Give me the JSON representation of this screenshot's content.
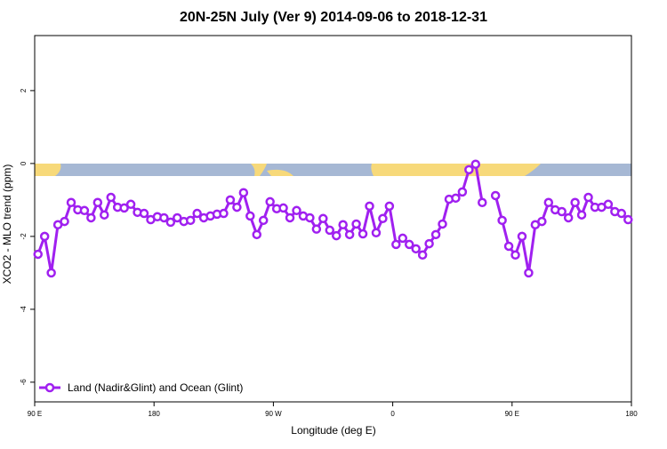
{
  "chart_data": {
    "type": "line",
    "title": "20N-25N July (Ver 9)   2014-09-06 to 2018-12-31",
    "x_label": "Longitude (deg E)",
    "y_label": "XCO2 - MLO trend (ppm)",
    "xlim": [
      90,
      540
    ],
    "ylim": [
      -6.54,
      3.51
    ],
    "xticks": [
      {
        "value": 90,
        "label": "90 E"
      },
      180,
      {
        "value": 270,
        "label": "90 W"
      },
      {
        "value": 360,
        "label": "0"
      },
      {
        "value": 450,
        "label": "90 E"
      },
      {
        "value": 540,
        "label": "180"
      }
    ],
    "yticks": [
      2,
      0,
      -2,
      -4,
      -6
    ],
    "legend_position": "bottom-left",
    "x": [
      92.5,
      97.5,
      102.5,
      107.5,
      112.5,
      117.5,
      122.5,
      127.5,
      132.5,
      137.5,
      142.5,
      147.5,
      152.5,
      157.5,
      162.5,
      167.5,
      172.5,
      177.5,
      182.5,
      187.5,
      192.5,
      197.5,
      202.5,
      207.5,
      212.5,
      217.5,
      222.5,
      227.5,
      232.5,
      237.5,
      242.5,
      247.5,
      252.5,
      257.5,
      262.5,
      267.5,
      272.5,
      277.5,
      282.5,
      287.5,
      292.5,
      297.5,
      302.5,
      307.5,
      312.5,
      317.5,
      322.5,
      327.5,
      332.5,
      337.5,
      342.5,
      347.5,
      352.5,
      357.5,
      362.5,
      367.5,
      372.5,
      377.5,
      382.5,
      387.5,
      392.5,
      397.5,
      402.5,
      407.5,
      412.5,
      417.5,
      422.5,
      427.5,
      432.5,
      437.5,
      442.5,
      447.5,
      452.5,
      457.5,
      462.5,
      467.5,
      472.5,
      477.5,
      482.5,
      487.5,
      492.5,
      497.5,
      502.5,
      507.5,
      512.5,
      517.5,
      522.5,
      527.5,
      532.5,
      537.5
    ],
    "series": [
      {
        "name": "Land (Nadir&Glint) and Ocean (Glint)",
        "color": "#a020f0",
        "values": [
          -2.49,
          -2.0,
          -3.0,
          -1.68,
          -1.59,
          -1.07,
          -1.27,
          -1.29,
          -1.49,
          -1.07,
          -1.41,
          -0.93,
          -1.2,
          -1.22,
          -1.12,
          -1.34,
          -1.37,
          -1.54,
          -1.46,
          -1.49,
          -1.61,
          -1.49,
          -1.59,
          -1.56,
          -1.37,
          -1.49,
          -1.44,
          -1.39,
          -1.37,
          -1.0,
          -1.2,
          -0.8,
          -1.44,
          -1.95,
          -1.56,
          -1.05,
          -1.24,
          -1.22,
          -1.49,
          -1.29,
          -1.44,
          -1.49,
          -1.8,
          -1.51,
          -1.83,
          -1.98,
          -1.68,
          -1.95,
          -1.66,
          -1.93,
          -1.17,
          -1.9,
          -1.51,
          -1.17,
          -2.22,
          -2.05,
          -2.22,
          -2.34,
          -2.51,
          -2.2,
          -1.95,
          -1.66,
          -0.98,
          -0.95,
          -0.78,
          -0.17,
          -0.02,
          -1.07,
          null,
          -0.88,
          -1.56,
          -2.27,
          -2.51,
          -2.0,
          -3.0,
          -1.68,
          -1.59,
          -1.07,
          -1.27,
          -1.32,
          -1.49,
          -1.07,
          -1.41,
          -0.93,
          -1.2,
          -1.2,
          -1.12,
          -1.32,
          -1.37,
          -1.54
        ]
      }
    ]
  }
}
